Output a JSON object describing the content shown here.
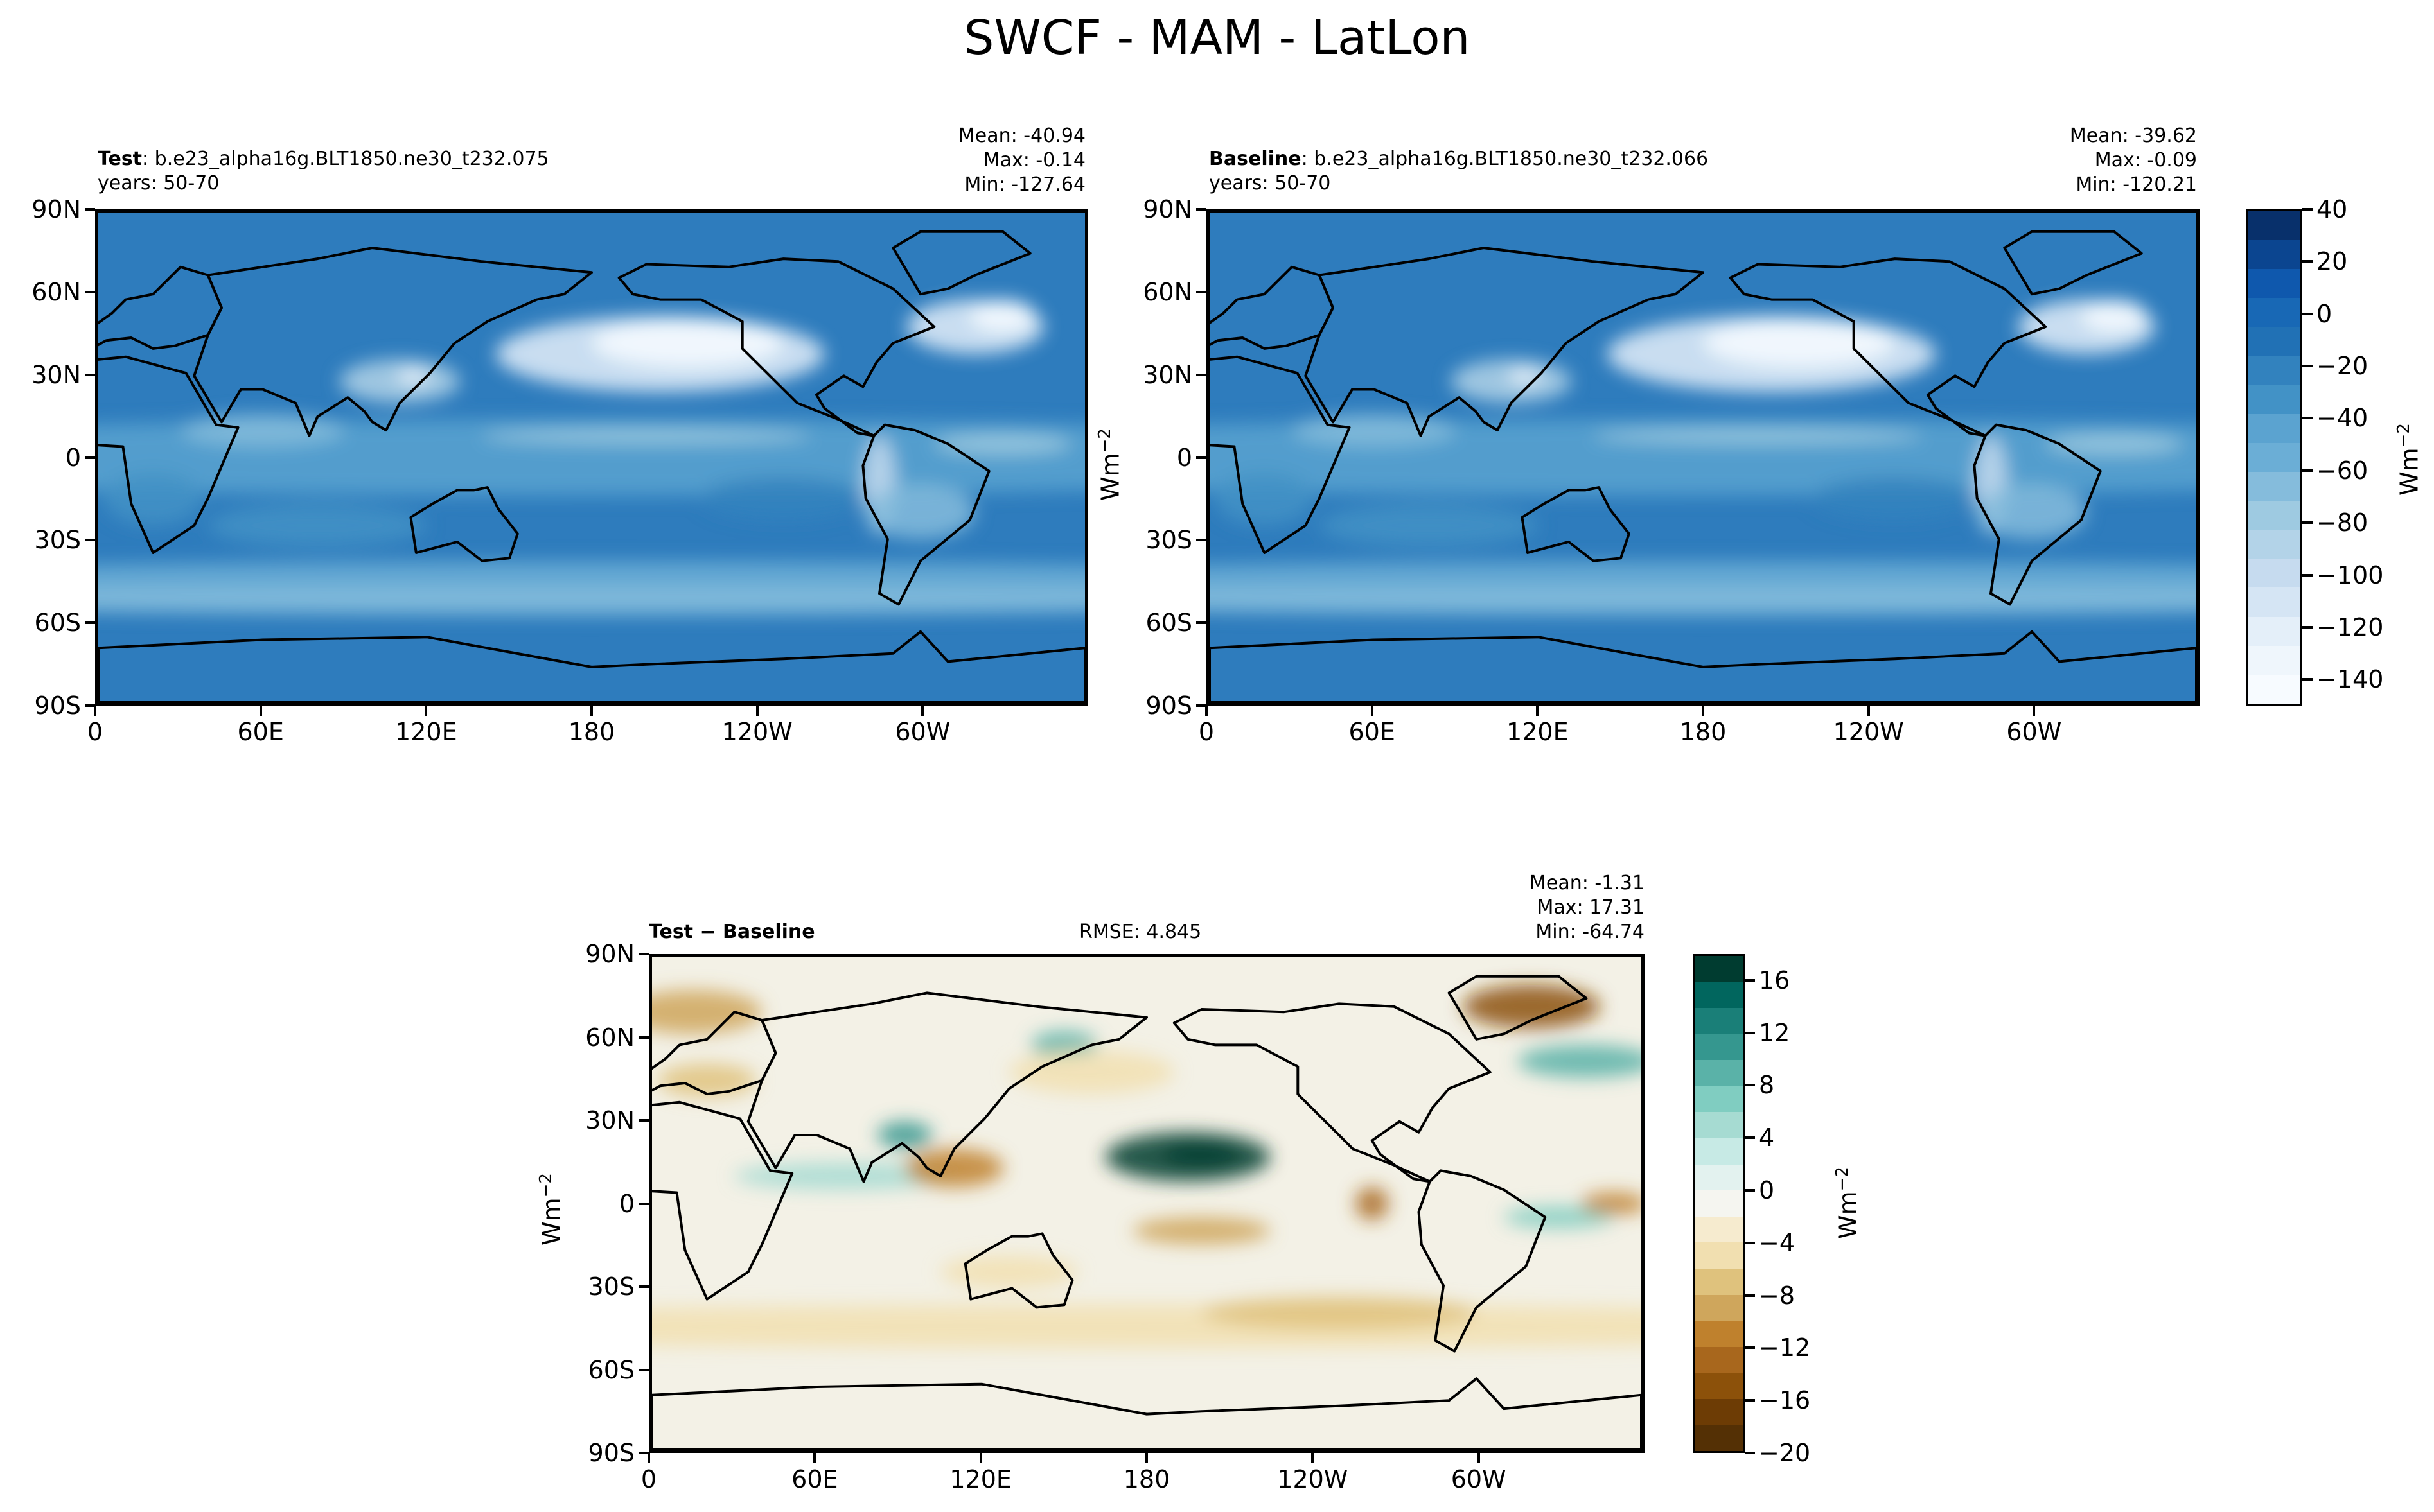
{
  "title": "SWCF - MAM - LatLon",
  "panels": {
    "test": {
      "label_bold": "Test",
      "label_rest": ": b.e23_alpha16g.BLT1850.ne30_t232.075",
      "years": "years: 50-70",
      "mean": "Mean: -40.94",
      "max": "Max: -0.14",
      "min": "Min: -127.64",
      "units": "Wm",
      "units_exp": "−2"
    },
    "baseline": {
      "label_bold": "Baseline",
      "label_rest": ": b.e23_alpha16g.BLT1850.ne30_t232.066",
      "years": "years: 50-70",
      "mean": "Mean: -39.62",
      "max": "Max: -0.09",
      "min": "Min: -120.21"
    },
    "diff": {
      "label": "Test − Baseline",
      "rmse": "RMSE: 4.845",
      "mean": "Mean: -1.31",
      "max": "Max: 17.31",
      "min": "Min: -64.74",
      "units": "Wm",
      "units_exp": "−2"
    }
  },
  "axes": {
    "lat_ticks": [
      "90N",
      "60N",
      "30N",
      "0",
      "30S",
      "60S",
      "90S"
    ],
    "lon_ticks": [
      "0",
      "60E",
      "120E",
      "180",
      "120W",
      "60W"
    ],
    "lat_range": [
      -90,
      90
    ],
    "lon_range": [
      0,
      360
    ]
  },
  "colorbars": {
    "main": {
      "ticks": [
        "40",
        "20",
        "0",
        "−20",
        "−40",
        "−60",
        "−80",
        "−100",
        "−120",
        "−140"
      ],
      "range": [
        -150,
        40
      ],
      "units": "Wm",
      "units_exp": "−2",
      "colors": [
        "#08306b",
        "#0b4590",
        "#0f58ad",
        "#1868b5",
        "#2171b5",
        "#3282be",
        "#4292c6",
        "#5ba3d0",
        "#6baed6",
        "#85bcdc",
        "#9ecae1",
        "#b3d3e8",
        "#c6dbef",
        "#d5e5f4",
        "#e4eff9",
        "#eff6fc",
        "#f7fbff"
      ]
    },
    "diff": {
      "ticks": [
        "16",
        "12",
        "8",
        "4",
        "0",
        "−4",
        "−8",
        "−12",
        "−16",
        "−20"
      ],
      "range": [
        -20,
        18
      ],
      "units": "Wm",
      "units_exp": "−2",
      "colors": [
        "#003c30",
        "#01665e",
        "#1a7f78",
        "#35978f",
        "#5ab2a8",
        "#80cdc1",
        "#a6dbd2",
        "#c7eae5",
        "#e3f2ef",
        "#f5f5f0",
        "#f6ebcf",
        "#f1dfb0",
        "#dfc27d",
        "#cfa65c",
        "#bf812d",
        "#a8671d",
        "#8c510a",
        "#6d3c05",
        "#543005"
      ]
    }
  },
  "palette": {
    "main_background": "#2e7cbd",
    "diff_background": "#f3f1e6",
    "coastline": "#000000"
  }
}
